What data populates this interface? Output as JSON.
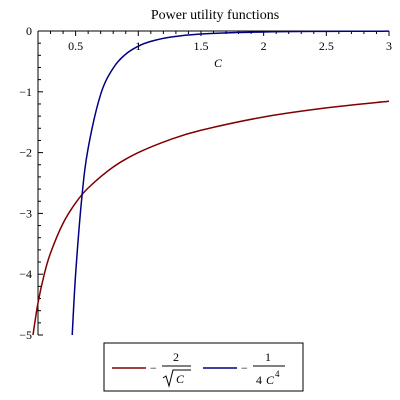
{
  "chart_data": {
    "type": "line",
    "title": "Power utility functions",
    "xlabel": "C",
    "ylabel": "",
    "xlim": [
      0.2,
      3
    ],
    "ylim": [
      -5,
      0
    ],
    "x_ticks": [
      0.5,
      1,
      1.5,
      2,
      2.5,
      3
    ],
    "x_tick_labels": [
      "0.5",
      "1",
      "1.5",
      "2",
      "2.5",
      "3"
    ],
    "y_ticks": [
      0,
      -1,
      -2,
      -3,
      -4,
      -5
    ],
    "y_tick_labels": [
      "0",
      "−1",
      "−2",
      "−3",
      "−4",
      "−5"
    ],
    "grid": false,
    "legend_position": "bottom-center",
    "series": [
      {
        "color": "#800000",
        "x": [
          0.16,
          0.2,
          0.25,
          0.3,
          0.4,
          0.5,
          0.6,
          0.8,
          1,
          1.25,
          1.5,
          2,
          2.5,
          3
        ],
        "y": [
          -5,
          -4.472,
          -4,
          -3.651,
          -3.162,
          -2.828,
          -2.582,
          -2.236,
          -2,
          -1.789,
          -1.633,
          -1.414,
          -1.265,
          -1.155
        ],
        "legend": {
          "minus": "−",
          "numerator": "2",
          "denominator_var": "C"
        }
      },
      {
        "color": "#000080",
        "x": [
          0.473,
          0.5,
          0.55,
          0.6,
          0.7,
          0.8,
          0.9,
          1,
          1.1,
          1.25,
          1.5,
          2,
          2.5,
          3
        ],
        "y": [
          -5,
          -4,
          -2.732,
          -1.929,
          -1.041,
          -0.61,
          -0.381,
          -0.25,
          -0.171,
          -0.102,
          -0.049,
          -0.016,
          -0.006,
          -0.003
        ],
        "legend": {
          "minus": "−",
          "numerator": "1",
          "denominator_coef": "4",
          "denominator_var": "C",
          "denominator_exp": "4"
        }
      }
    ]
  }
}
